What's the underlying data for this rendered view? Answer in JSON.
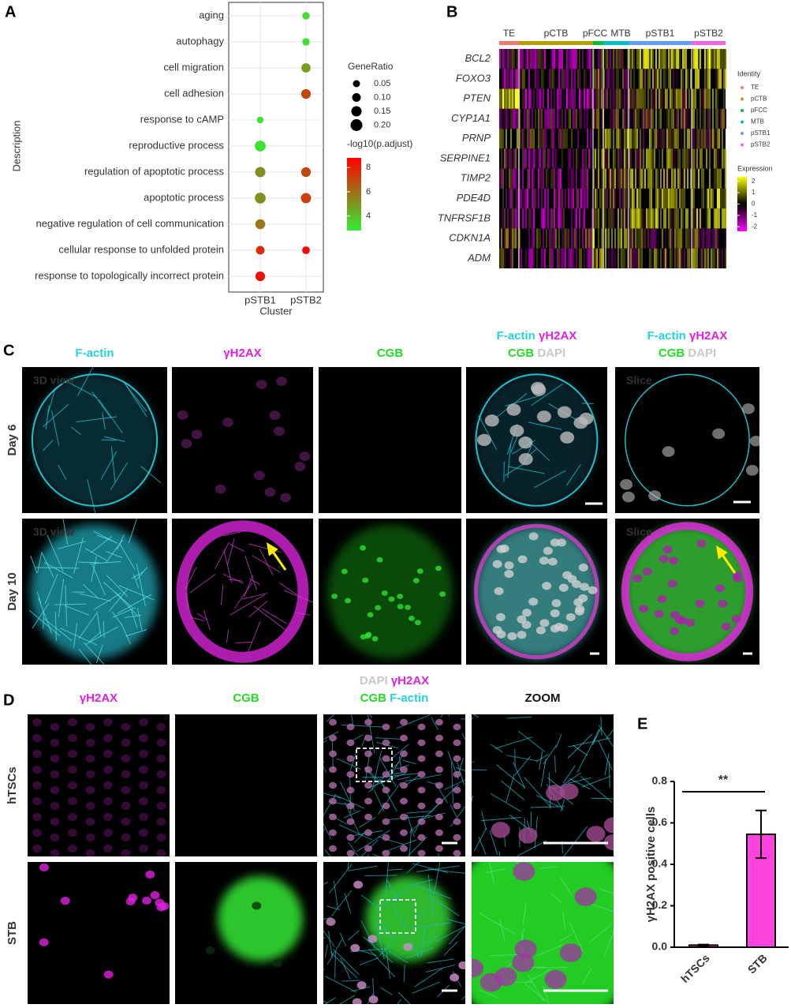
{
  "chart_data": [
    {
      "type": "dotplot",
      "letter": "A",
      "x_label": "Cluster",
      "y_label": "Description",
      "x_categories": [
        "pSTB1",
        "pSTB2"
      ],
      "categories": [
        "aging",
        "autophagy",
        "cell migration",
        "cell adhesion",
        "response to cAMP",
        "reproductive process",
        "regulation of apoptotic process",
        "apoptotic process",
        "negative regulation of cell communication",
        "cellular response to unfolded protein",
        "response to topologically incorrect protein"
      ],
      "size_values": [
        [
          null,
          null,
          null,
          null,
          0.04,
          0.17,
          0.15,
          0.17,
          0.14,
          0.1,
          0.13
        ],
        [
          0.06,
          0.06,
          0.12,
          0.13,
          null,
          null,
          0.13,
          0.15,
          null,
          0.07,
          null
        ]
      ],
      "color_values": [
        [
          null,
          null,
          null,
          null,
          3,
          3.1,
          5.2,
          5.2,
          5.8,
          7.6,
          8.4
        ],
        [
          3.2,
          3.1,
          4.8,
          7,
          null,
          null,
          7,
          7.2,
          null,
          8.6,
          null
        ]
      ],
      "size_legend": {
        "title": "GeneRatio",
        "values": [
          0.05,
          {
            "value": 0.1,
            "label": "0.10"
          },
          0.15,
          {
            "value": 0.2,
            "label": "0.20"
          }
        ]
      },
      "color_legend": {
        "title": "-log10(p.adjust)",
        "clim": [
          2.8,
          8.8
        ],
        "ticks": [
          4,
          6,
          8
        ],
        "colormap": [
          "#33ee33",
          "#ff0000"
        ]
      },
      "grid": true
    },
    {
      "type": "bar",
      "letter": "E",
      "y_label": "γH2AX positive cells",
      "categories": [
        "hTSCs",
        "STB"
      ],
      "values": [
        0.01,
        0.545
      ],
      "errors": [
        0.003,
        0.115
      ],
      "color": "#ff44dd",
      "ylim": [
        0,
        0.8
      ],
      "yticks": [
        {
          "value": 0,
          "label": "0.0"
        },
        0.2,
        0.4,
        0.6,
        0.8
      ],
      "significance": "**"
    }
  ],
  "heatmap": {
    "letter": "B",
    "groups": [
      {
        "name": "TE",
        "color": "#f8766d"
      },
      {
        "name": "pCTB",
        "color": "#b79f00"
      },
      {
        "name": "pFCC",
        "color": "#00ba38"
      },
      {
        "name": "MTB",
        "color": "#00bfc4"
      },
      {
        "name": "pSTB1",
        "color": "#619cff"
      },
      {
        "name": "pSTB2",
        "color": "#f564e3"
      }
    ],
    "genes": [
      "BCL2",
      "FOXO3",
      "PTEN",
      "CYP1A1",
      "PRNP",
      "SERPINE1",
      "TIMP2",
      "PDE4D",
      "TNFRSF1B",
      "CDKN1A",
      "ADM"
    ],
    "identity_title": "Identity",
    "expression_title": "Expression",
    "expression_lim": [
      -2.4,
      2.4
    ],
    "expression_ticks": [
      2,
      1,
      0,
      -1,
      -2
    ],
    "expression_colors": [
      "#ff00ff",
      "#000000",
      "#ffff00"
    ]
  },
  "panel_c": {
    "letter": "C",
    "columns": [
      [
        [
          {
            "text": "F-actin",
            "color": "#22d3e0"
          }
        ]
      ],
      [
        [
          {
            "text": "γH2AX",
            "color": "#e020e0"
          }
        ]
      ],
      [
        [
          {
            "text": "CGB",
            "color": "#22dd22"
          }
        ]
      ],
      [
        [
          {
            "text": "F-actin",
            "color": "#22d3e0"
          },
          {
            "text": "γH2AX",
            "color": "#e020e0"
          }
        ],
        [
          {
            "text": "CGB",
            "color": "#22dd22"
          },
          {
            "text": "DAPI",
            "color": "#c8c8c8"
          }
        ]
      ],
      [
        [
          {
            "text": "F-actin",
            "color": "#22d3e0"
          },
          {
            "text": "γH2AX",
            "color": "#e020e0"
          }
        ],
        [
          {
            "text": "CGB",
            "color": "#22dd22"
          },
          {
            "text": "DAPI",
            "color": "#c8c8c8"
          }
        ]
      ]
    ],
    "rows": [
      "Day 6",
      "Day 10"
    ],
    "insets": [
      [
        "3D view",
        null,
        null,
        null,
        "Slice"
      ],
      [
        "3D view",
        null,
        null,
        null,
        "Slice"
      ]
    ]
  },
  "panel_d": {
    "letter": "D",
    "columns": [
      [
        [
          {
            "text": "γH2AX",
            "color": "#e020e0"
          }
        ]
      ],
      [
        [
          {
            "text": "CGB",
            "color": "#22dd22"
          }
        ]
      ],
      [
        [
          {
            "text": "DAPI",
            "color": "#c8c8c8"
          },
          {
            "text": "γH2AX",
            "color": "#e020e0"
          }
        ],
        [
          {
            "text": "CGB",
            "color": "#22dd22"
          },
          {
            "text": "F-actin",
            "color": "#22d3e0"
          }
        ]
      ],
      [
        [
          {
            "text": "ZOOM",
            "color": "#111111"
          }
        ]
      ]
    ],
    "rows": [
      "hTSCs",
      "STB"
    ]
  }
}
